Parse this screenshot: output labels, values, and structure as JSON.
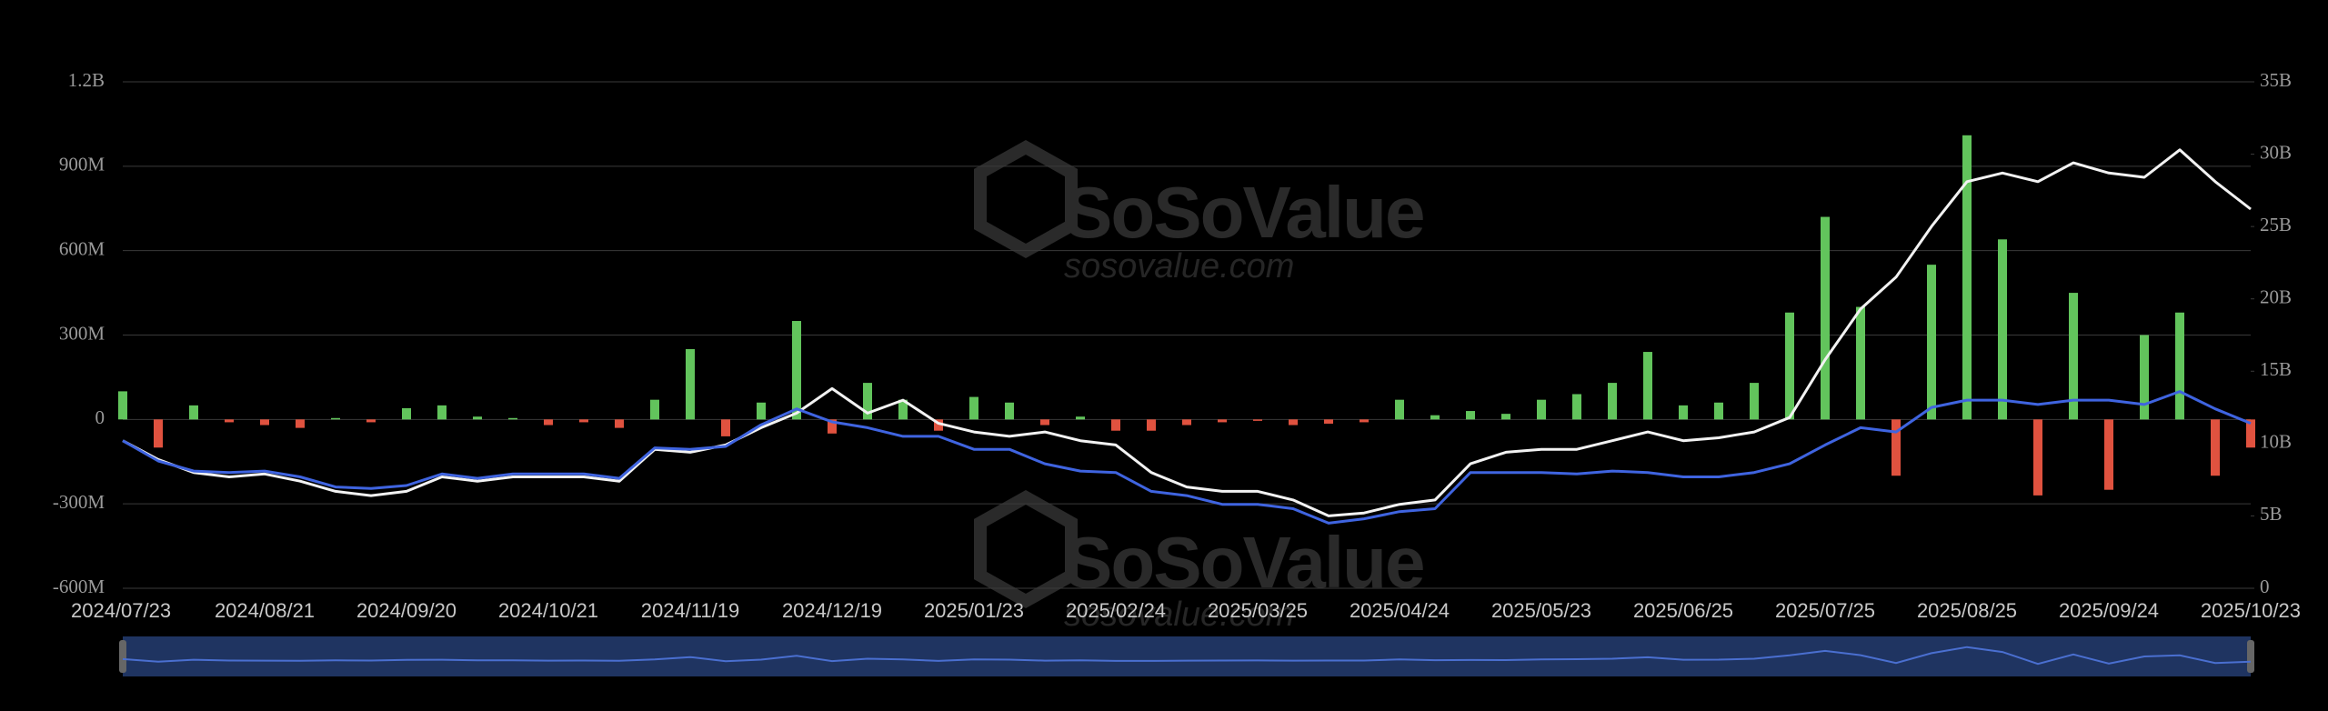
{
  "chart_data": {
    "type": "combo",
    "watermark": {
      "brand": "SoSoValue",
      "url": "sosovalue.com"
    },
    "categories": [
      "2024/07/23",
      null,
      null,
      null,
      "2024/08/21",
      null,
      null,
      null,
      "2024/09/20",
      null,
      null,
      null,
      "2024/10/21",
      null,
      null,
      null,
      "2024/11/19",
      null,
      null,
      null,
      "2024/12/19",
      null,
      null,
      null,
      "2025/01/23",
      null,
      null,
      null,
      "2025/02/24",
      null,
      null,
      null,
      "2025/03/25",
      null,
      null,
      null,
      "2025/04/24",
      null,
      null,
      null,
      "2025/05/23",
      null,
      null,
      null,
      "2025/06/25",
      null,
      null,
      null,
      "2025/07/25",
      null,
      null,
      null,
      "2025/08/25",
      null,
      null,
      null,
      "2025/09/24",
      null,
      null,
      null,
      "2025/10/23"
    ],
    "ylim": [
      -600,
      1200
    ],
    "yticks": [
      {
        "value": -600,
        "label": "-600M"
      },
      {
        "value": -300,
        "label": "-300M"
      },
      0,
      {
        "value": 300,
        "label": "300M"
      },
      {
        "value": 600,
        "label": "600M"
      },
      {
        "value": 900,
        "label": "900M"
      },
      {
        "value": 1200,
        "label": "1.2B"
      }
    ],
    "y2lim": [
      0,
      35
    ],
    "y2ticks": [
      0,
      {
        "value": 5,
        "label": "5B"
      },
      {
        "value": 10,
        "label": "10B"
      },
      {
        "value": 15,
        "label": "15B"
      },
      {
        "value": 20,
        "label": "20B"
      },
      {
        "value": 25,
        "label": "25B"
      },
      {
        "value": 30,
        "label": "30B"
      },
      {
        "value": 35,
        "label": "35B"
      }
    ],
    "grid": true,
    "series": [
      {
        "type": "bar",
        "color": "#62c45c",
        "negative_color": "#e0523f",
        "values": [
          100,
          -100,
          50,
          -10,
          -20,
          -30,
          5,
          -10,
          40,
          50,
          10,
          5,
          -20,
          -10,
          -30,
          70,
          250,
          -60,
          60,
          350,
          -50,
          130,
          70,
          -40,
          80,
          60,
          -20,
          10,
          -40,
          -40,
          -20,
          -10,
          -5,
          -20,
          -15,
          -10,
          70,
          15,
          30,
          20,
          70,
          90,
          130,
          240,
          50,
          60,
          130,
          380,
          720,
          400,
          -200,
          550,
          1010,
          640,
          -270,
          450,
          -250,
          300,
          380,
          -200,
          -100
        ]
      },
      {
        "type": "line",
        "axis": "y2",
        "color": "#f2f2f2",
        "values": [
          10.2,
          8.9,
          8.0,
          7.7,
          7.9,
          7.4,
          6.7,
          6.4,
          6.7,
          7.7,
          7.4,
          7.7,
          7.7,
          7.7,
          7.4,
          9.6,
          9.4,
          9.9,
          11.1,
          12.1,
          13.8,
          12.1,
          13.0,
          11.4,
          10.8,
          10.5,
          10.8,
          10.2,
          9.9,
          8.0,
          7.0,
          6.7,
          6.7,
          6.1,
          5.0,
          5.2,
          5.8,
          6.1,
          8.6,
          9.4,
          9.6,
          9.6,
          10.2,
          10.8,
          10.2,
          10.4,
          10.8,
          11.8,
          15.8,
          19.3,
          21.5,
          25.0,
          28.1,
          28.7,
          28.1,
          29.4,
          28.7,
          28.4,
          30.3,
          28.1,
          26.2
        ]
      },
      {
        "type": "line",
        "axis": "y2",
        "color": "#3f64e0",
        "values": [
          10.2,
          8.8,
          8.1,
          8.0,
          8.1,
          7.7,
          7.0,
          6.9,
          7.1,
          7.9,
          7.6,
          7.9,
          7.9,
          7.9,
          7.6,
          9.7,
          9.6,
          9.8,
          11.3,
          12.4,
          11.5,
          11.1,
          10.5,
          10.5,
          9.6,
          9.6,
          8.6,
          8.1,
          8.0,
          6.7,
          6.4,
          5.8,
          5.8,
          5.5,
          4.5,
          4.8,
          5.3,
          5.5,
          8.0,
          8.0,
          8.0,
          7.9,
          8.1,
          8.0,
          7.7,
          7.7,
          8.0,
          8.6,
          9.9,
          11.1,
          10.8,
          12.5,
          13.0,
          13.0,
          12.7,
          13.0,
          13.0,
          12.7,
          13.6,
          12.4,
          11.4
        ]
      }
    ]
  }
}
